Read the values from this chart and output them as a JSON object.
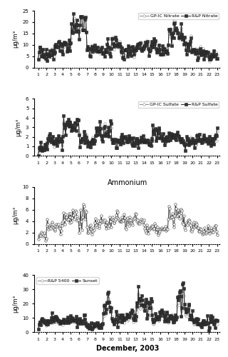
{
  "panel1": {
    "title": "",
    "legend": [
      "GP-IC Nitrate",
      "R&P Nitrate"
    ],
    "ylabel": "μg/m³",
    "ylim": [
      0,
      25
    ],
    "yticks": [
      0,
      5,
      10,
      15,
      20,
      25
    ],
    "line1_style": {
      "color": "#888888",
      "marker": "o",
      "markersize": 2.5,
      "lw": 0.7,
      "markerfacecolor": "white"
    },
    "line2_style": {
      "color": "#222222",
      "marker": "s",
      "markersize": 2.5,
      "lw": 0.7,
      "markerfacecolor": "#333333"
    }
  },
  "panel2": {
    "title": "",
    "legend": [
      "GP-IC Sulfate",
      "R&P Sulfate"
    ],
    "ylabel": "μg/m³",
    "ylim": [
      0,
      6
    ],
    "yticks": [
      0,
      1,
      2,
      3,
      4,
      5,
      6
    ],
    "line1_style": {
      "color": "#888888",
      "marker": "o",
      "markersize": 2.5,
      "lw": 0.7,
      "markerfacecolor": "white"
    },
    "line2_style": {
      "color": "#222222",
      "marker": "s",
      "markersize": 2.5,
      "lw": 0.7,
      "markerfacecolor": "#333333"
    }
  },
  "panel3": {
    "title": "Ammonium",
    "legend": [],
    "ylabel": "μg/m³",
    "ylim": [
      0,
      10
    ],
    "yticks": [
      0,
      2,
      4,
      6,
      8,
      10
    ],
    "line1_style": {
      "color": "#333333",
      "marker": "o",
      "markersize": 2.5,
      "lw": 0.7,
      "markerfacecolor": "white"
    }
  },
  "panel4": {
    "title": "",
    "legend": [
      "R&P 5400",
      "Sunset"
    ],
    "ylabel": "μg/m³",
    "ylim": [
      0,
      40
    ],
    "yticks": [
      0,
      10,
      20,
      30,
      40
    ],
    "line1_style": {
      "color": "#888888",
      "marker": "o",
      "markersize": 2.5,
      "lw": 0.7,
      "markerfacecolor": "white"
    },
    "line2_style": {
      "color": "#222222",
      "marker": "s",
      "markersize": 2.5,
      "lw": 0.7,
      "markerfacecolor": "#333333"
    }
  },
  "xlabel": "December, 2003",
  "xticks": [
    1,
    2,
    3,
    4,
    5,
    6,
    7,
    8,
    9,
    10,
    11,
    12,
    13,
    14,
    15,
    16,
    17,
    18,
    19,
    20,
    21,
    22,
    23
  ],
  "n_days": 23,
  "pts_per_day": 12
}
